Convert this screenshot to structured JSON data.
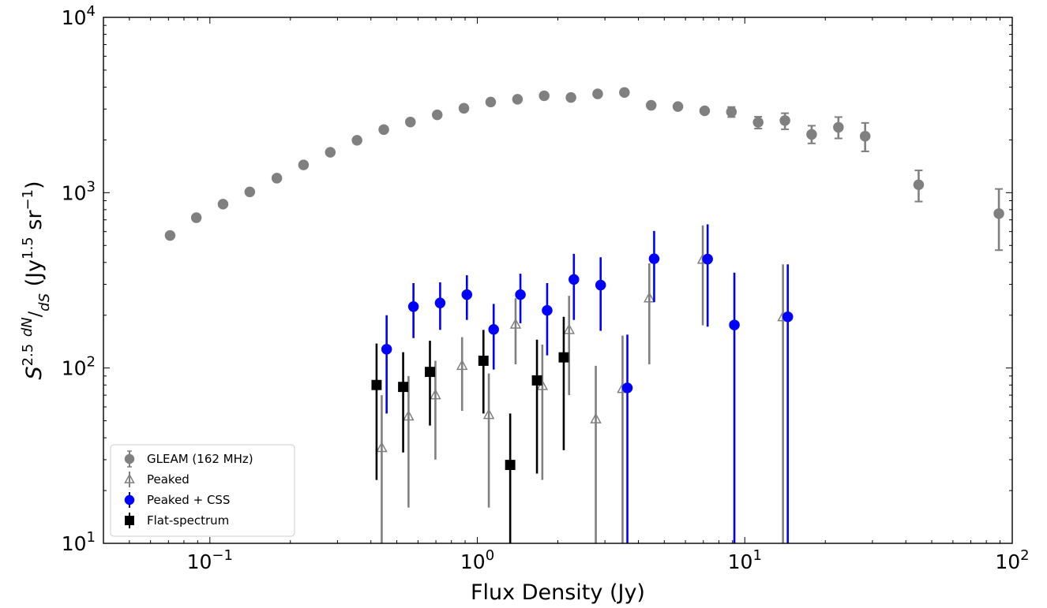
{
  "chart_data": {
    "type": "scatter",
    "xscale": "log",
    "yscale": "log",
    "xlim": [
      0.04,
      100
    ],
    "ylim": [
      10,
      10000
    ],
    "xlabel": "Flux Density (Jy)",
    "ylabel": "S^{2.5} dN/dS (Jy^{1.5} sr^{-1})",
    "x_ticks": [
      {
        "value": 0.1,
        "mantissa": "10",
        "exp": "−1"
      },
      {
        "value": 1,
        "mantissa": "10",
        "exp": "0"
      },
      {
        "value": 10,
        "mantissa": "10",
        "exp": "1"
      },
      {
        "value": 100,
        "mantissa": "10",
        "exp": "2"
      }
    ],
    "y_ticks": [
      {
        "value": 10,
        "mantissa": "10",
        "exp": "1"
      },
      {
        "value": 100,
        "mantissa": "10",
        "exp": "2"
      },
      {
        "value": 1000,
        "mantissa": "10",
        "exp": "3"
      },
      {
        "value": 10000,
        "mantissa": "10",
        "exp": "4"
      }
    ],
    "legend_position": "lower-left",
    "series": [
      {
        "name": "GLEAM (162 MHz)",
        "key": "gleam",
        "marker": "circle",
        "filled": true,
        "color": "#808080",
        "points": [
          {
            "x": 0.071,
            "y": 570,
            "lo": 570,
            "hi": 570
          },
          {
            "x": 0.089,
            "y": 720,
            "lo": 720,
            "hi": 720
          },
          {
            "x": 0.112,
            "y": 860,
            "lo": 860,
            "hi": 860
          },
          {
            "x": 0.141,
            "y": 1010,
            "lo": 1010,
            "hi": 1010
          },
          {
            "x": 0.178,
            "y": 1210,
            "lo": 1210,
            "hi": 1210
          },
          {
            "x": 0.224,
            "y": 1440,
            "lo": 1440,
            "hi": 1440
          },
          {
            "x": 0.282,
            "y": 1700,
            "lo": 1700,
            "hi": 1700
          },
          {
            "x": 0.355,
            "y": 1990,
            "lo": 1990,
            "hi": 1990
          },
          {
            "x": 0.447,
            "y": 2290,
            "lo": 2290,
            "hi": 2290
          },
          {
            "x": 0.562,
            "y": 2530,
            "lo": 2530,
            "hi": 2530
          },
          {
            "x": 0.708,
            "y": 2780,
            "lo": 2780,
            "hi": 2780
          },
          {
            "x": 0.891,
            "y": 3030,
            "lo": 3030,
            "hi": 3030
          },
          {
            "x": 1.122,
            "y": 3290,
            "lo": 3290,
            "hi": 3290
          },
          {
            "x": 1.413,
            "y": 3410,
            "lo": 3410,
            "hi": 3410
          },
          {
            "x": 1.778,
            "y": 3570,
            "lo": 3570,
            "hi": 3570
          },
          {
            "x": 2.239,
            "y": 3490,
            "lo": 3490,
            "hi": 3490
          },
          {
            "x": 2.818,
            "y": 3660,
            "lo": 3660,
            "hi": 3660
          },
          {
            "x": 3.548,
            "y": 3730,
            "lo": 3730,
            "hi": 3730
          },
          {
            "x": 4.467,
            "y": 3150,
            "lo": 3150,
            "hi": 3150
          },
          {
            "x": 5.623,
            "y": 3100,
            "lo": 3100,
            "hi": 3100
          },
          {
            "x": 7.079,
            "y": 2930,
            "lo": 2830,
            "hi": 3030
          },
          {
            "x": 8.913,
            "y": 2890,
            "lo": 2700,
            "hi": 3080
          },
          {
            "x": 11.22,
            "y": 2520,
            "lo": 2320,
            "hi": 2710
          },
          {
            "x": 14.13,
            "y": 2580,
            "lo": 2300,
            "hi": 2840
          },
          {
            "x": 17.78,
            "y": 2150,
            "lo": 1910,
            "hi": 2410
          },
          {
            "x": 22.39,
            "y": 2360,
            "lo": 2040,
            "hi": 2700
          },
          {
            "x": 28.18,
            "y": 2100,
            "lo": 1720,
            "hi": 2500
          },
          {
            "x": 44.67,
            "y": 1110,
            "lo": 890,
            "hi": 1340
          },
          {
            "x": 89.13,
            "y": 760,
            "lo": 470,
            "hi": 1050
          }
        ]
      },
      {
        "name": "Peaked",
        "key": "peaked",
        "marker": "triangle",
        "filled": false,
        "color": "#808080",
        "points": [
          {
            "x": 0.439,
            "y": 35,
            "lo": 10,
            "hi": 70
          },
          {
            "x": 0.553,
            "y": 53,
            "lo": 16,
            "hi": 90
          },
          {
            "x": 0.697,
            "y": 70,
            "lo": 30,
            "hi": 110
          },
          {
            "x": 0.877,
            "y": 103,
            "lo": 57,
            "hi": 150
          },
          {
            "x": 1.104,
            "y": 54,
            "lo": 16,
            "hi": 93
          },
          {
            "x": 1.39,
            "y": 177,
            "lo": 105,
            "hi": 250
          },
          {
            "x": 1.75,
            "y": 79,
            "lo": 23,
            "hi": 136
          },
          {
            "x": 2.203,
            "y": 165,
            "lo": 70,
            "hi": 258
          },
          {
            "x": 2.773,
            "y": 51,
            "lo": 10,
            "hi": 103
          },
          {
            "x": 3.491,
            "y": 76,
            "lo": 10,
            "hi": 153
          },
          {
            "x": 4.395,
            "y": 250,
            "lo": 105,
            "hi": 395
          },
          {
            "x": 6.965,
            "y": 415,
            "lo": 175,
            "hi": 650
          },
          {
            "x": 13.89,
            "y": 195,
            "lo": 10,
            "hi": 390
          }
        ]
      },
      {
        "name": "Peaked + CSS",
        "key": "css",
        "marker": "circle",
        "filled": true,
        "color": "#0000ff",
        "points": [
          {
            "x": 0.458,
            "y": 128,
            "lo": 55,
            "hi": 200
          },
          {
            "x": 0.577,
            "y": 224,
            "lo": 148,
            "hi": 305
          },
          {
            "x": 0.726,
            "y": 235,
            "lo": 165,
            "hi": 308
          },
          {
            "x": 0.914,
            "y": 262,
            "lo": 188,
            "hi": 338
          },
          {
            "x": 1.151,
            "y": 166,
            "lo": 98,
            "hi": 232
          },
          {
            "x": 1.449,
            "y": 262,
            "lo": 180,
            "hi": 345
          },
          {
            "x": 1.824,
            "y": 213,
            "lo": 118,
            "hi": 305
          },
          {
            "x": 2.296,
            "y": 320,
            "lo": 188,
            "hi": 448
          },
          {
            "x": 2.891,
            "y": 297,
            "lo": 163,
            "hi": 428
          },
          {
            "x": 3.639,
            "y": 77,
            "lo": 10,
            "hi": 155
          },
          {
            "x": 4.582,
            "y": 420,
            "lo": 238,
            "hi": 605
          },
          {
            "x": 7.262,
            "y": 418,
            "lo": 172,
            "hi": 660
          },
          {
            "x": 9.142,
            "y": 176,
            "lo": 10,
            "hi": 350
          },
          {
            "x": 14.48,
            "y": 196,
            "lo": 10,
            "hi": 390
          }
        ]
      },
      {
        "name": "Flat-spectrum",
        "key": "flat",
        "marker": "square",
        "filled": true,
        "color": "#000000",
        "points": [
          {
            "x": 0.42,
            "y": 80,
            "lo": 23,
            "hi": 138
          },
          {
            "x": 0.528,
            "y": 78,
            "lo": 33,
            "hi": 123
          },
          {
            "x": 0.665,
            "y": 95,
            "lo": 47,
            "hi": 143
          },
          {
            "x": 1.054,
            "y": 110,
            "lo": 55,
            "hi": 165
          },
          {
            "x": 1.327,
            "y": 28,
            "lo": 10,
            "hi": 55
          },
          {
            "x": 1.671,
            "y": 85,
            "lo": 25,
            "hi": 145
          },
          {
            "x": 2.104,
            "y": 115,
            "lo": 34,
            "hi": 196
          }
        ]
      }
    ]
  }
}
